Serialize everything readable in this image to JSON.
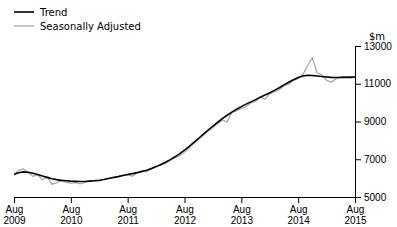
{
  "chart_data": {
    "type": "line",
    "ylabel": "$m",
    "categories": [
      "Aug\n2009",
      null,
      null,
      null,
      null,
      null,
      null,
      null,
      null,
      null,
      null,
      null,
      "Aug\n2010",
      null,
      null,
      null,
      null,
      null,
      null,
      null,
      null,
      null,
      null,
      null,
      "Aug\n2011",
      null,
      null,
      null,
      null,
      null,
      null,
      null,
      null,
      null,
      null,
      null,
      "Aug\n2012",
      null,
      null,
      null,
      null,
      null,
      null,
      null,
      null,
      null,
      null,
      null,
      "Aug\n2013",
      null,
      null,
      null,
      null,
      null,
      null,
      null,
      null,
      null,
      null,
      null,
      "Aug\n2014",
      null,
      null,
      null,
      null,
      null,
      null,
      null,
      null,
      null,
      null,
      null,
      "Aug\n2015"
    ],
    "series": [
      {
        "name": "Trend",
        "color": "#000000",
        "values": [
          6200,
          6280,
          6330,
          6310,
          6260,
          6190,
          6110,
          6040,
          5970,
          5920,
          5880,
          5860,
          5840,
          5830,
          5820,
          5820,
          5840,
          5860,
          5890,
          5930,
          5980,
          6030,
          6080,
          6140,
          6190,
          6240,
          6290,
          6350,
          6420,
          6510,
          6610,
          6720,
          6840,
          6980,
          7130,
          7300,
          7480,
          7680,
          7890,
          8110,
          8330,
          8550,
          8760,
          8960,
          9150,
          9330,
          9500,
          9650,
          9790,
          9920,
          10040,
          10160,
          10280,
          10400,
          10520,
          10650,
          10790,
          10940,
          11080,
          11210,
          11330,
          11410,
          11450,
          11440,
          11410,
          11380,
          11360,
          11340,
          11330,
          11330,
          11340,
          11350,
          11360
        ]
      },
      {
        "name": "Seasonally Adjusted",
        "color": "#aaaaaa",
        "values": [
          6150,
          6420,
          6480,
          6280,
          6100,
          6180,
          5900,
          6050,
          5680,
          5750,
          5880,
          5780,
          5740,
          5760,
          5700,
          5790,
          5870,
          5880,
          5840,
          5940,
          5990,
          6050,
          6090,
          6150,
          6180,
          6100,
          6290,
          6390,
          6330,
          6490,
          6590,
          6680,
          6790,
          6940,
          7090,
          7190,
          7390,
          7590,
          7880,
          8090,
          8280,
          8490,
          8680,
          8880,
          9080,
          8980,
          9480,
          9580,
          9680,
          9790,
          9990,
          10080,
          10280,
          10180,
          10480,
          10580,
          10680,
          10880,
          10980,
          11180,
          11280,
          11470,
          11980,
          12380,
          11580,
          11470,
          11180,
          11080,
          11270,
          11370,
          11380,
          11290,
          11380
        ]
      }
    ],
    "ylim": [
      5000,
      13000
    ],
    "yticks": [
      5000,
      7000,
      9000,
      11000,
      13000
    ],
    "grid": false,
    "legend": "upper left"
  }
}
